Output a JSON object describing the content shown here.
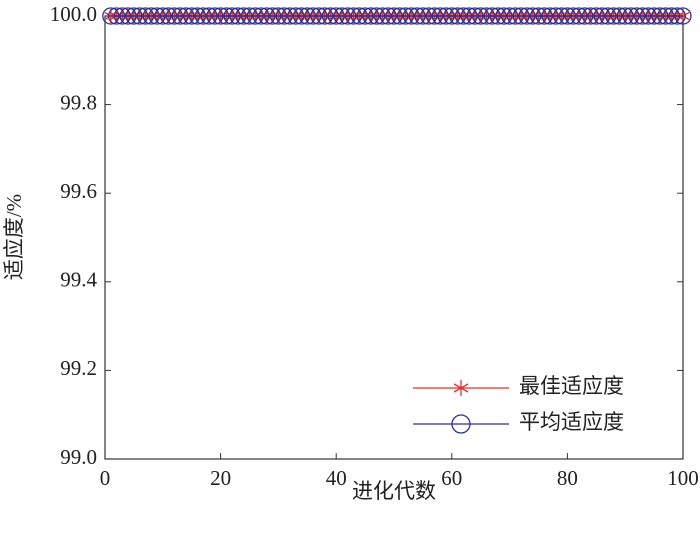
{
  "chart_data": {
    "type": "line",
    "x_label": "进化代数",
    "y_label": "适应度/%",
    "x": [
      1,
      2,
      3,
      4,
      5,
      6,
      7,
      8,
      9,
      10,
      11,
      12,
      13,
      14,
      15,
      16,
      17,
      18,
      19,
      20,
      21,
      22,
      23,
      24,
      25,
      26,
      27,
      28,
      29,
      30,
      31,
      32,
      33,
      34,
      35,
      36,
      37,
      38,
      39,
      40,
      41,
      42,
      43,
      44,
      45,
      46,
      47,
      48,
      49,
      50,
      51,
      52,
      53,
      54,
      55,
      56,
      57,
      58,
      59,
      60,
      61,
      62,
      63,
      64,
      65,
      66,
      67,
      68,
      69,
      70,
      71,
      72,
      73,
      74,
      75,
      76,
      77,
      78,
      79,
      80,
      81,
      82,
      83,
      84,
      85,
      86,
      87,
      88,
      89,
      90,
      91,
      92,
      93,
      94,
      95,
      96,
      97,
      98,
      99,
      100
    ],
    "series": [
      {
        "name": "最佳适应度",
        "color": "#e8302a",
        "marker": "asterisk",
        "values": [
          100,
          100,
          100,
          100,
          100,
          100,
          100,
          100,
          100,
          100,
          100,
          100,
          100,
          100,
          100,
          100,
          100,
          100,
          100,
          100,
          100,
          100,
          100,
          100,
          100,
          100,
          100,
          100,
          100,
          100,
          100,
          100,
          100,
          100,
          100,
          100,
          100,
          100,
          100,
          100,
          100,
          100,
          100,
          100,
          100,
          100,
          100,
          100,
          100,
          100,
          100,
          100,
          100,
          100,
          100,
          100,
          100,
          100,
          100,
          100,
          100,
          100,
          100,
          100,
          100,
          100,
          100,
          100,
          100,
          100,
          100,
          100,
          100,
          100,
          100,
          100,
          100,
          100,
          100,
          100,
          100,
          100,
          100,
          100,
          100,
          100,
          100,
          100,
          100,
          100,
          100,
          100,
          100,
          100,
          100,
          100,
          100,
          100,
          100,
          100
        ]
      },
      {
        "name": "平均适应度",
        "color": "#2e3192",
        "marker": "circle",
        "values": [
          100,
          100,
          100,
          100,
          100,
          100,
          100,
          100,
          100,
          100,
          100,
          100,
          100,
          100,
          100,
          100,
          100,
          100,
          100,
          100,
          100,
          100,
          100,
          100,
          100,
          100,
          100,
          100,
          100,
          100,
          100,
          100,
          100,
          100,
          100,
          100,
          100,
          100,
          100,
          100,
          100,
          100,
          100,
          100,
          100,
          100,
          100,
          100,
          100,
          100,
          100,
          100,
          100,
          100,
          100,
          100,
          100,
          100,
          100,
          100,
          100,
          100,
          100,
          100,
          100,
          100,
          100,
          100,
          100,
          100,
          100,
          100,
          100,
          100,
          100,
          100,
          100,
          100,
          100,
          100,
          100,
          100,
          100,
          100,
          100,
          100,
          100,
          100,
          100,
          100,
          100,
          100,
          100,
          100,
          100,
          100,
          100,
          100,
          100,
          100
        ]
      }
    ],
    "xlim": [
      0,
      100
    ],
    "xticks": [
      0,
      20,
      40,
      60,
      80,
      100
    ],
    "ylim": [
      99,
      100
    ],
    "yticks": [
      {
        "value": 99,
        "label": "99.0"
      },
      99.2,
      99.4,
      99.6,
      99.8,
      {
        "value": 100,
        "label": "100.0"
      }
    ],
    "legend": "lower right"
  }
}
